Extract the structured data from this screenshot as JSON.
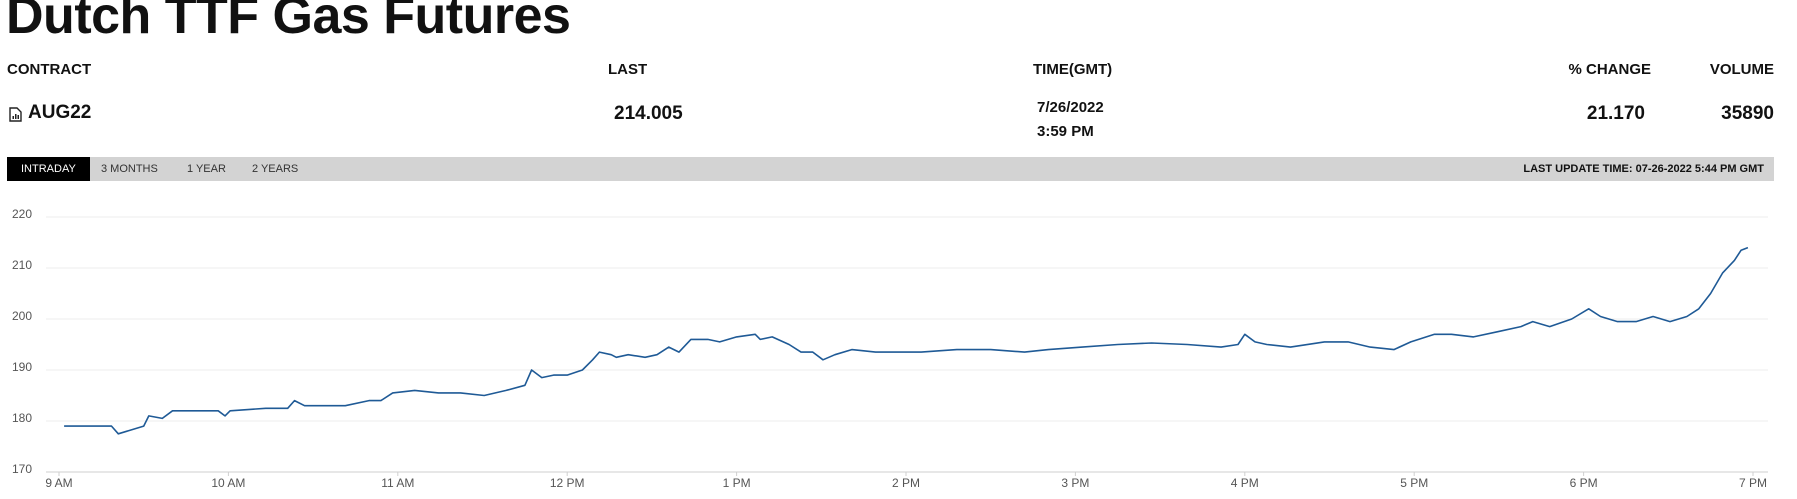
{
  "title": "Dutch TTF Gas Futures",
  "table": {
    "headers": [
      "CONTRACT",
      "LAST",
      "TIME(GMT)",
      "% CHANGE",
      "VOLUME"
    ],
    "rows": [
      [
        "AUG22",
        "214.005",
        [
          "7/26/2022",
          "3:59 PM"
        ],
        "21.170",
        "35890"
      ]
    ]
  },
  "tabs": [
    "INTRADAY",
    "3 MONTHS",
    "1 YEAR",
    "2 YEARS"
  ],
  "last_update": "LAST UPDATE TIME: 07-26-2022 5:44 PM GMT",
  "chart_data": {
    "type": "line",
    "color": "#1f5a96",
    "grid": true,
    "x": [
      9.03,
      9.31,
      9.35,
      9.5,
      9.53,
      9.61,
      9.67,
      9.94,
      9.98,
      10.01,
      10.22,
      10.35,
      10.39,
      10.45,
      10.69,
      10.83,
      10.9,
      10.97,
      11.1,
      11.24,
      11.37,
      11.51,
      11.64,
      11.75,
      11.79,
      11.85,
      11.92,
      12.0,
      12.09,
      12.15,
      12.19,
      12.26,
      12.29,
      12.36,
      12.46,
      12.53,
      12.6,
      12.66,
      12.73,
      12.83,
      12.9,
      13.0,
      13.11,
      13.14,
      13.21,
      13.31,
      13.38,
      13.45,
      13.51,
      13.58,
      13.68,
      13.82,
      13.96,
      14.09,
      14.3,
      14.5,
      14.7,
      14.84,
      15.04,
      15.25,
      15.45,
      15.66,
      15.86,
      15.96,
      16.0,
      16.06,
      16.13,
      16.27,
      16.47,
      16.61,
      16.74,
      16.88,
      16.98,
      17.12,
      17.22,
      17.35,
      17.49,
      17.63,
      17.7,
      17.8,
      17.93,
      18.03,
      18.1,
      18.2,
      18.31,
      18.41,
      18.51,
      18.61,
      18.68,
      18.75,
      18.82,
      18.89,
      18.93,
      18.97
    ],
    "values": [
      179,
      179,
      177.5,
      179,
      181,
      180.5,
      182,
      182,
      181,
      182,
      182.5,
      182.5,
      184,
      183,
      183,
      184,
      184,
      185.5,
      186,
      185.5,
      185.5,
      185,
      186,
      187,
      190,
      188.5,
      189,
      189,
      190,
      192,
      193.5,
      193,
      192.5,
      193,
      192.5,
      193,
      194.5,
      193.5,
      196,
      196,
      195.5,
      196.5,
      197,
      196,
      196.5,
      195,
      193.5,
      193.5,
      192,
      193,
      194,
      193.5,
      193.5,
      193.5,
      194,
      194,
      193.5,
      194,
      194.5,
      195,
      195.3,
      195,
      194.5,
      195,
      197,
      195.5,
      195,
      194.5,
      195.5,
      195.5,
      194.5,
      194,
      195.5,
      197,
      197,
      196.5,
      197.5,
      198.5,
      199.5,
      198.5,
      200,
      202,
      200.5,
      199.5,
      199.5,
      200.5,
      199.5,
      200.5,
      202,
      205,
      209,
      211.5,
      213.5,
      214
    ],
    "xlim": [
      9,
      19
    ],
    "xticks": [
      {
        "value": 9,
        "label": "9 AM"
      },
      {
        "value": 10,
        "label": "10 AM"
      },
      {
        "value": 11,
        "label": "11 AM"
      },
      {
        "value": 12,
        "label": "12 PM"
      },
      {
        "value": 13,
        "label": "1 PM"
      },
      {
        "value": 14,
        "label": "2 PM"
      },
      {
        "value": 15,
        "label": "3 PM"
      },
      {
        "value": 16,
        "label": "4 PM"
      },
      {
        "value": 17,
        "label": "5 PM"
      },
      {
        "value": 18,
        "label": "6 PM"
      },
      {
        "value": 19,
        "label": "7 PM"
      }
    ],
    "ylim": [
      170,
      220
    ],
    "yticks": [
      170,
      180,
      190,
      200,
      210,
      220
    ]
  }
}
